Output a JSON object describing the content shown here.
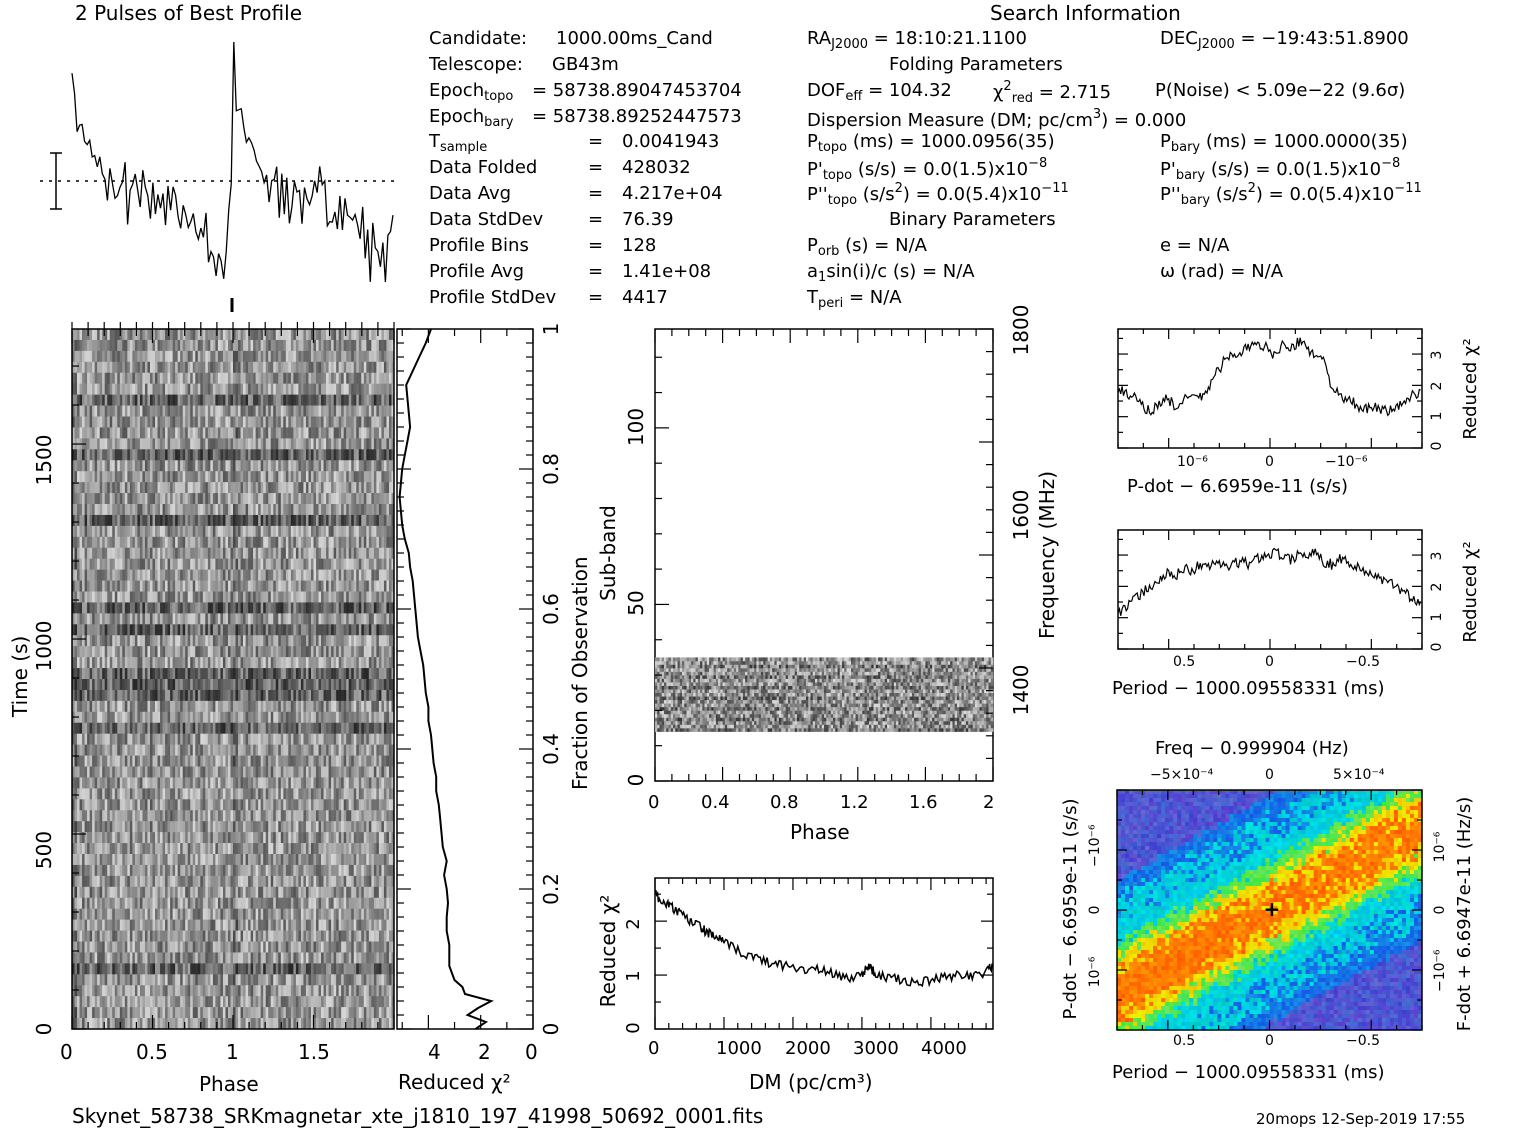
{
  "profile_title": "2 Pulses of Best Profile",
  "search_title": "Search Information",
  "footer_file": "Skynet_58738_SRKmagnetar_xte_j1810_197_41998_50692_0001.fits",
  "footer_stamp": "20mops 12-Sep-2019 17:55",
  "info": {
    "candidate_label": "Candidate:",
    "candidate_value": "1000.00ms_Cand",
    "telescope_label": "Telescope:",
    "telescope_value": "GB43m",
    "epoch_topo_label": "Epoch",
    "epoch_topo_sub": "topo",
    "epoch_topo_value": "= 58738.89047453704",
    "epoch_bary_label": "Epoch",
    "epoch_bary_sub": "bary",
    "epoch_bary_value": "= 58738.89252447573",
    "tsample_label": "T",
    "tsample_sub": "sample",
    "tsample_value": "0.0041943",
    "folded_label": "Data Folded",
    "folded_value": "428032",
    "avg_label": "Data Avg",
    "avg_value": "4.217e+04",
    "std_label": "Data StdDev",
    "std_value": "76.39",
    "bins_label": "Profile Bins",
    "bins_value": "128",
    "pavg_label": "Profile Avg",
    "pavg_value": "1.41e+08",
    "pstd_label": "Profile StdDev",
    "pstd_value": "4417",
    "eq": "="
  },
  "search": {
    "ra_label": "RA",
    "ra_sub": "J2000",
    "ra_value": "= 18:10:21.1100",
    "dec_label": "DEC",
    "dec_sub": "J2000",
    "dec_value": "= −19:43:51.8900",
    "folding_header": "Folding Parameters",
    "dof_label": "DOF",
    "dof_sub": "eff",
    "dof_value": "= 104.32",
    "chi_label": "χ",
    "chi_sup": "2",
    "chi_sub": "red",
    "chi_value": "= 2.715",
    "pnoise": "P(Noise) < 5.09e−22   (9.6σ)",
    "dm_text": "Dispersion Measure (DM; pc/cm",
    "dm_sup": "3",
    "dm_value": ") = 0.000",
    "ptopo_label": "P",
    "ptopo_sub": "topo",
    "ptopo_value": "(ms) =  1000.0956(35)",
    "pbary_label": "P",
    "pbary_sub": "bary",
    "pbary_value": "(ms) =  1000.0000(35)",
    "pdtopo_label": "P'",
    "pdtopo_sub": "topo",
    "pdtopo_value": "(s/s) = 0.0(1.5)x10",
    "pdtopo_exp": "−8",
    "pdbary_label": "P'",
    "pdbary_sub": "bary",
    "pdbary_value": "(s/s) = 0.0(1.5)x10",
    "pdbary_exp": "−8",
    "pddtopo_label": "P''",
    "pddtopo_sub": "topo",
    "pddtopo_value1": "(s/s",
    "pddtopo_sup": "2",
    "pddtopo_value2": ") = 0.0(5.4)x10",
    "pddtopo_exp": "−11",
    "pddbary_label": "P''",
    "pddbary_sub": "bary",
    "pddbary_value1": "(s/s",
    "pddbary_sup": "2",
    "pddbary_value2": ") = 0.0(5.4)x10",
    "pddbary_exp": "−11",
    "binary_header": "Binary Parameters",
    "porb_label": "P",
    "porb_sub": "orb",
    "porb_value": "(s) = N/A",
    "e_text": "e = N/A",
    "a1_label": "a",
    "a1_sub": "1",
    "a1_value": "sin(i)/c (s) = N/A",
    "omega_text": "ω (rad) = N/A",
    "tperi_label": "T",
    "tperi_sub": "peri",
    "tperi_value": "= N/A"
  },
  "colors": {
    "ink": "#000000",
    "heat_low": "#2b2bd6",
    "heat_mid": "#00e0e0",
    "heat_high": "#ff2000"
  },
  "chart_data": [
    {
      "id": "pulse_profile",
      "type": "line",
      "title": "2 Pulses of Best Profile",
      "xlim": [
        0,
        2
      ],
      "values": [
        0.95,
        0.72,
        0.66,
        0.7,
        0.62,
        0.58,
        0.6,
        0.55,
        0.48,
        0.52,
        0.45,
        0.5,
        0.4,
        0.47,
        0.36,
        0.44,
        0.38,
        0.42,
        0.33,
        0.4,
        0.35,
        0.45,
        0.3,
        0.38,
        0.34,
        0.42,
        0.36,
        0.3,
        0.4,
        0.33,
        0.38,
        0.29,
        0.36,
        0.31,
        0.42,
        0.34,
        0.38,
        0.27,
        0.33,
        0.29,
        0.36,
        0.3,
        0.34,
        0.26,
        0.31,
        0.28,
        0.24,
        0.3,
        0.22,
        0.28,
        0.2,
        0.25,
        0.16,
        0.22,
        0.08,
        0.18,
        0.12,
        0.06,
        0.14,
        0.1,
        0.04,
        0.12,
        0.28,
        0.45,
        0.95,
        0.72,
        0.66,
        0.7,
        0.62,
        0.58,
        0.6,
        0.55,
        0.48,
        0.52,
        0.45,
        0.5,
        0.4,
        0.47,
        0.36,
        0.44,
        0.38,
        0.42,
        0.33,
        0.4,
        0.35,
        0.45,
        0.3,
        0.38,
        0.34,
        0.42,
        0.36,
        0.3,
        0.4,
        0.33,
        0.38,
        0.29,
        0.36,
        0.31,
        0.42,
        0.34,
        0.38,
        0.27,
        0.33,
        0.29,
        0.36,
        0.3,
        0.34,
        0.26,
        0.31,
        0.28,
        0.24,
        0.3,
        0.22,
        0.28,
        0.2,
        0.25,
        0.16,
        0.22,
        0.08,
        0.18,
        0.12,
        0.06,
        0.14,
        0.1,
        0.04,
        0.12,
        0.2,
        0.25
      ]
    },
    {
      "id": "time_phase",
      "type": "heatmap",
      "xlabel": "Phase",
      "ylabel": "Time (s)",
      "xlim": [
        0,
        2
      ],
      "ylim": [
        0,
        1795
      ],
      "xticks": [
        "0",
        "0.5",
        "1",
        "1.5"
      ],
      "yticks": [
        "0",
        "500",
        "1000",
        "1500"
      ],
      "rows": 64
    },
    {
      "id": "time_chi2",
      "type": "line",
      "xlabel": "Reduced χ²",
      "ylabel": "Fraction of Observation",
      "xlim": [
        5.2,
        0
      ],
      "ylim": [
        0,
        1
      ],
      "xticks": [
        "4",
        "2",
        "0"
      ],
      "yticks": [
        "0",
        "0.2",
        "0.4",
        "0.6",
        "0.8",
        "1"
      ],
      "frac": [
        0,
        0.01,
        0.02,
        0.03,
        0.04,
        0.05,
        0.06,
        0.07,
        0.08,
        0.09,
        0.1,
        0.12,
        0.14,
        0.16,
        0.18,
        0.2,
        0.22,
        0.24,
        0.26,
        0.28,
        0.3,
        0.32,
        0.34,
        0.36,
        0.38,
        0.4,
        0.42,
        0.44,
        0.46,
        0.48,
        0.5,
        0.52,
        0.54,
        0.56,
        0.58,
        0.6,
        0.62,
        0.64,
        0.66,
        0.68,
        0.7,
        0.72,
        0.74,
        0.76,
        0.78,
        0.8,
        0.82,
        0.84,
        0.86,
        0.88,
        0.9,
        0.92,
        0.94,
        0.96,
        0.98,
        1.0
      ],
      "chi2": [
        2.2,
        1.8,
        2.5,
        2.1,
        1.6,
        2.6,
        2.7,
        3.0,
        3.1,
        3.2,
        3.2,
        3.2,
        3.3,
        3.3,
        3.25,
        3.3,
        3.4,
        3.3,
        3.45,
        3.5,
        3.55,
        3.6,
        3.7,
        3.7,
        3.8,
        3.85,
        3.9,
        4.0,
        4.0,
        4.1,
        4.15,
        4.2,
        4.3,
        4.4,
        4.45,
        4.5,
        4.55,
        4.6,
        4.7,
        4.75,
        4.9,
        5.0,
        5.05,
        5.1,
        5.05,
        5.0,
        4.9,
        4.8,
        4.7,
        4.75,
        4.8,
        4.85,
        4.6,
        4.35,
        4.1,
        3.9
      ]
    },
    {
      "id": "subband_phase",
      "type": "heatmap",
      "xlabel": "Phase",
      "ylabel": "Sub-band",
      "y2label": "Frequency (MHz)",
      "xlim": [
        0,
        2
      ],
      "ylim": [
        0,
        128
      ],
      "xticks": [
        "0",
        "0.4",
        "0.8",
        "1.2",
        "1.6",
        "2"
      ],
      "yticks": [
        "0",
        "50",
        "100"
      ],
      "y2ticks": [
        "1400",
        "1600",
        "1800"
      ],
      "band_subbands": [
        14,
        35
      ]
    },
    {
      "id": "dm_chi2",
      "type": "line",
      "xlabel": "DM (pc/cm³)",
      "ylabel": "Reduced χ²",
      "xlim": [
        0,
        4900
      ],
      "ylim": [
        0,
        2.8
      ],
      "xticks": [
        "0",
        "1000",
        "2000",
        "3000",
        "4000"
      ],
      "yticks": [
        "0",
        "1",
        "2"
      ],
      "x": [
        0,
        100,
        200,
        300,
        400,
        500,
        600,
        700,
        800,
        900,
        1000,
        1200,
        1400,
        1600,
        1800,
        2000,
        2200,
        2400,
        2600,
        2800,
        3000,
        3100,
        3200,
        3400,
        3600,
        3800,
        4000,
        4200,
        4400,
        4600,
        4800,
        4900
      ],
      "y": [
        2.5,
        2.35,
        2.3,
        2.2,
        2.1,
        2.0,
        1.95,
        1.85,
        1.75,
        1.7,
        1.6,
        1.45,
        1.35,
        1.25,
        1.2,
        1.15,
        1.1,
        1.1,
        1.0,
        0.95,
        1.0,
        1.2,
        1.0,
        0.95,
        0.9,
        0.85,
        0.9,
        0.95,
        1.0,
        1.0,
        1.05,
        1.2
      ]
    },
    {
      "id": "pdot_chi2",
      "type": "line",
      "xlabel": "P-dot − 6.6959e-11 (s/s)",
      "ylabel": "Reduced χ²",
      "ylim": [
        0,
        3.8
      ],
      "xticks": [
        "10⁻⁶",
        "0",
        "−10⁻⁶"
      ],
      "yticks": [
        "0",
        "1",
        "2",
        "3"
      ],
      "y": [
        1.9,
        1.7,
        1.6,
        1.3,
        1.2,
        1.4,
        1.6,
        1.3,
        1.5,
        1.7,
        1.6,
        1.9,
        2.4,
        2.8,
        3.0,
        3.1,
        3.2,
        3.3,
        3.2,
        3.0,
        3.3,
        3.1,
        3.4,
        3.2,
        3.0,
        2.8,
        2.0,
        1.6,
        1.5,
        1.4,
        1.2,
        1.3,
        1.2,
        1.2,
        1.3,
        1.5,
        1.7,
        1.9
      ]
    },
    {
      "id": "period_chi2",
      "type": "line",
      "xlabel": "Period − 1000.09558331 (ms)",
      "ylabel": "Reduced χ²",
      "ylim": [
        0,
        3.8
      ],
      "xticks": [
        "0.5",
        "0",
        "−0.5"
      ],
      "yticks": [
        "0",
        "1",
        "2",
        "3"
      ],
      "y": [
        1.2,
        1.3,
        1.6,
        1.8,
        2.0,
        2.2,
        2.4,
        2.3,
        2.6,
        2.5,
        2.7,
        2.6,
        2.8,
        2.6,
        2.7,
        2.8,
        2.7,
        2.9,
        3.0,
        3.1,
        3.0,
        2.8,
        3.1,
        2.9,
        3.2,
        2.8,
        2.7,
        2.9,
        2.8,
        2.6,
        2.5,
        2.4,
        2.2,
        2.1,
        2.0,
        1.8,
        1.6,
        1.5
      ]
    },
    {
      "id": "pdot_period_plane",
      "type": "heatmap",
      "title": "Freq − 0.999904 (Hz)",
      "xlabel": "Period − 1000.09558331 (ms)",
      "ylabel": "P-dot − 6.6959e-11 (s/s)",
      "y2label": "F-dot + 6.6947e-11 (Hz/s)",
      "xticks": [
        "0.5",
        "0",
        "−0.5"
      ],
      "x2ticks": [
        "−5×10⁻⁴",
        "0",
        "5×10⁻⁴"
      ],
      "yticks": [
        "10⁻⁶",
        "0",
        "−10⁻⁶"
      ],
      "y2ticks": [
        "−10⁻⁶",
        "0",
        "10⁻⁶"
      ]
    }
  ]
}
